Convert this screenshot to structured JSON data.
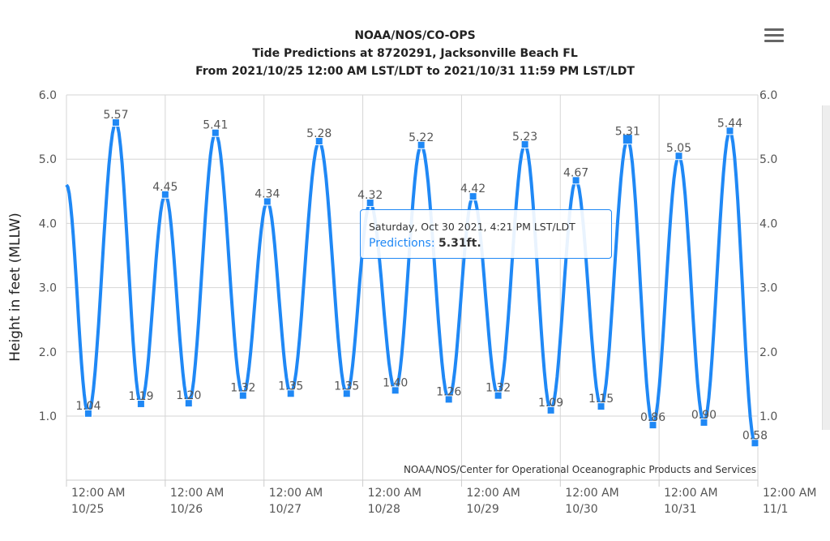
{
  "chart_data": {
    "type": "line",
    "title": [
      "NOAA/NOS/CO-OPS",
      "Tide Predictions at 8720291, Jacksonville Beach FL",
      "From 2021/10/25 12:00 AM LST/LDT to 2021/10/31 11:59 PM LST/LDT"
    ],
    "ylabel": "Height in feet (MLLW)",
    "ylim": [
      0.4,
      6.0
    ],
    "yticks": [
      "1.0",
      "2.0",
      "3.0",
      "4.0",
      "5.0",
      "6.0"
    ],
    "xlim": [
      "2021-10-25T00:00",
      "2021-11-01T00:00"
    ],
    "xticks": [
      {
        "time": "12:00 AM",
        "date": "10/25"
      },
      {
        "time": "12:00 AM",
        "date": "10/26"
      },
      {
        "time": "12:00 AM",
        "date": "10/27"
      },
      {
        "time": "12:00 AM",
        "date": "10/28"
      },
      {
        "time": "12:00 AM",
        "date": "10/29"
      },
      {
        "time": "12:00 AM",
        "date": "10/30"
      },
      {
        "time": "12:00 AM",
        "date": "10/31"
      },
      {
        "time": "12:00 AM",
        "date": "11/1"
      }
    ],
    "grid": true,
    "series_color": "#1f88f5",
    "start_value": 4.6,
    "points": [
      {
        "t": "2021-10-25T05:18",
        "v": "1.04"
      },
      {
        "t": "2021-10-25T12:00",
        "v": "5.57"
      },
      {
        "t": "2021-10-25T18:06",
        "v": "1.19"
      },
      {
        "t": "2021-10-26T00:00",
        "v": "4.45"
      },
      {
        "t": "2021-10-26T05:42",
        "v": "1.20"
      },
      {
        "t": "2021-10-26T12:12",
        "v": "5.41"
      },
      {
        "t": "2021-10-26T18:54",
        "v": "1.32"
      },
      {
        "t": "2021-10-27T00:48",
        "v": "4.34"
      },
      {
        "t": "2021-10-27T06:30",
        "v": "1.35"
      },
      {
        "t": "2021-10-27T13:24",
        "v": "5.28"
      },
      {
        "t": "2021-10-27T20:06",
        "v": "1.35"
      },
      {
        "t": "2021-10-28T01:48",
        "v": "4.32"
      },
      {
        "t": "2021-10-28T07:54",
        "v": "1.40"
      },
      {
        "t": "2021-10-28T14:12",
        "v": "5.22"
      },
      {
        "t": "2021-10-28T20:54",
        "v": "1.26"
      },
      {
        "t": "2021-10-29T02:48",
        "v": "4.42"
      },
      {
        "t": "2021-10-29T08:54",
        "v": "1.32"
      },
      {
        "t": "2021-10-29T15:24",
        "v": "5.23"
      },
      {
        "t": "2021-10-29T21:42",
        "v": "1.09"
      },
      {
        "t": "2021-10-30T03:48",
        "v": "4.67"
      },
      {
        "t": "2021-10-30T09:54",
        "v": "1.15"
      },
      {
        "t": "2021-10-30T16:21",
        "v": "5.31"
      },
      {
        "t": "2021-10-30T22:30",
        "v": "0.86"
      },
      {
        "t": "2021-10-31T04:48",
        "v": "5.05"
      },
      {
        "t": "2021-10-31T10:54",
        "v": "0.90"
      },
      {
        "t": "2021-10-31T17:12",
        "v": "5.44"
      },
      {
        "t": "2021-10-31T23:18",
        "v": "0.58"
      }
    ],
    "highlighted_index": 21,
    "credits": "NOAA/NOS/Center for Operational Oceanographic Products and Services"
  },
  "tooltip": {
    "header": "Saturday, Oct 30 2021, 4:21 PM LST/LDT",
    "series_label": "Predictions:",
    "value": "5.31ft."
  },
  "menu_icon": "hamburger-menu-icon"
}
